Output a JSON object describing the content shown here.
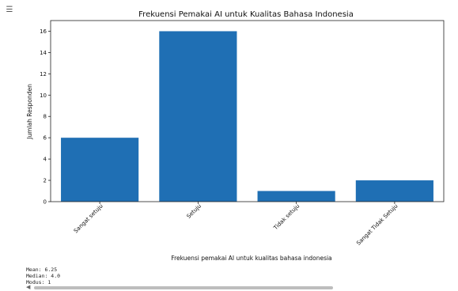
{
  "cell": {
    "icon": "output-toggle-icon"
  },
  "chart_data": {
    "type": "bar",
    "title": "Frekuensi Pemakai AI untuk Kualitas Bahasa Indonesia",
    "xlabel": "Frekuensi pemakai AI untuk kualitas bahasa indonesia",
    "ylabel": "Jumlah Responden",
    "categories": [
      "Sangat setuju",
      "Setuju",
      "Tidak setuju",
      "Sangat Tidak Setuju"
    ],
    "values": [
      6,
      16,
      1,
      2
    ],
    "ylim": [
      0,
      17
    ],
    "yticks": [
      0,
      2,
      4,
      6,
      8,
      10,
      12,
      14,
      16
    ],
    "bar_color": "#1f6fb4",
    "grid": false
  },
  "output": {
    "lines": [
      "Mean: 6.25",
      "Median: 4.0",
      "Modus: 1"
    ]
  },
  "scrollbar": {
    "arrow_icon": "scroll-left-arrow-icon"
  }
}
